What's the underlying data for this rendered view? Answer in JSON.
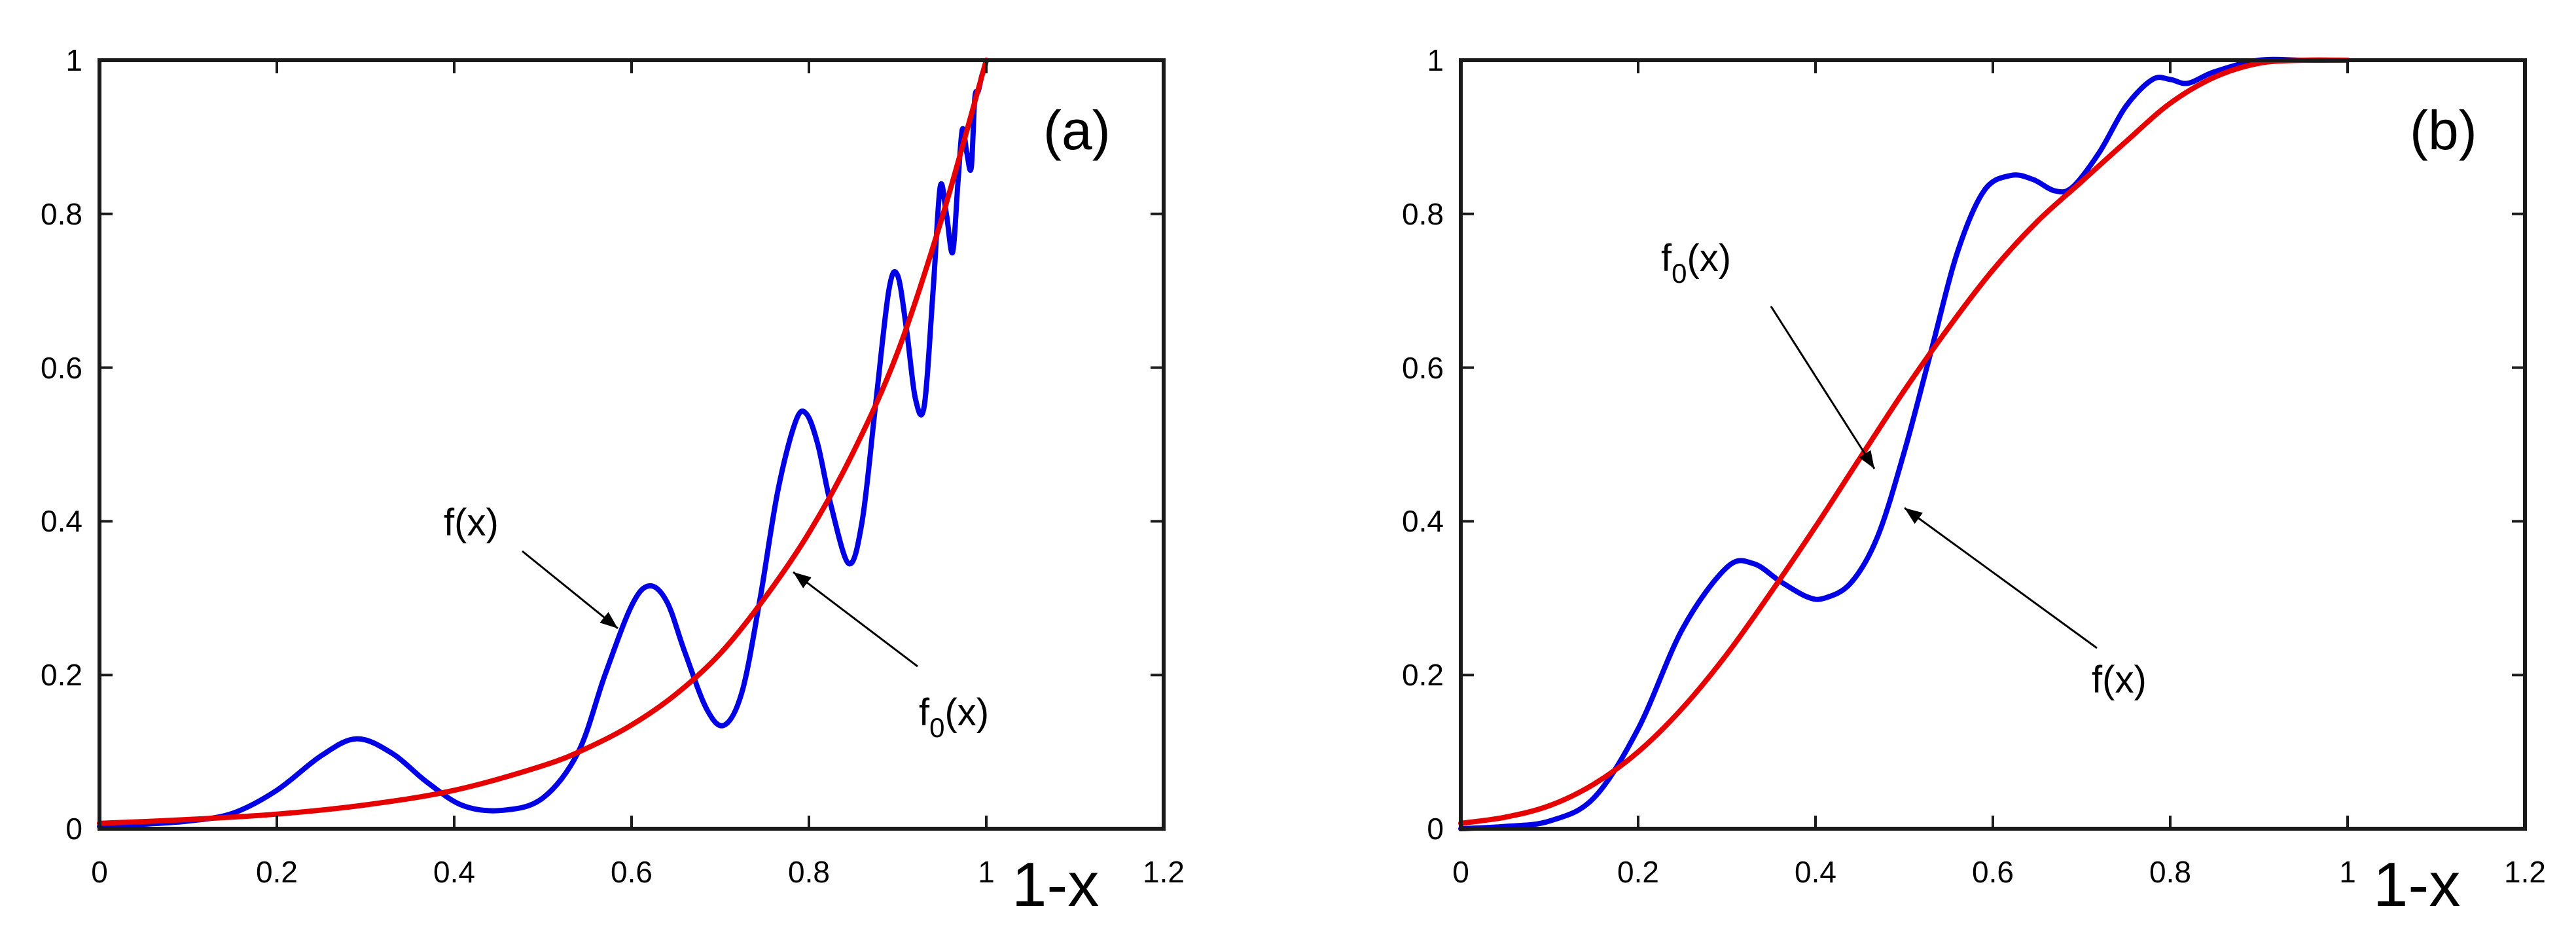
{
  "chart_data": [
    {
      "type": "line",
      "panel_label": "(a)",
      "xlabel": "1-x",
      "ylabel": "",
      "xlim": [
        0,
        1.2
      ],
      "ylim": [
        0,
        1
      ],
      "xticks": [
        "0",
        "0.2",
        "0.4",
        "0.6",
        "0.8",
        "1",
        "1.2"
      ],
      "yticks": [
        "0",
        "0.2",
        "0.4",
        "0.6",
        "0.8",
        "1"
      ],
      "grid": false,
      "series": [
        {
          "name": "f(x)",
          "color": "#0000e6",
          "x": [
            0,
            0.05,
            0.1,
            0.15,
            0.2,
            0.25,
            0.29,
            0.33,
            0.37,
            0.41,
            0.455,
            0.5,
            0.54,
            0.57,
            0.6,
            0.62,
            0.64,
            0.66,
            0.685,
            0.705,
            0.725,
            0.745,
            0.765,
            0.785,
            0.797,
            0.81,
            0.825,
            0.845,
            0.86,
            0.875,
            0.89,
            0.9,
            0.91,
            0.92,
            0.93,
            0.94,
            0.948,
            0.955,
            0.962,
            0.968,
            0.973,
            0.978,
            0.983,
            0.987,
            0.991,
            0.995,
            0.998,
            1.0
          ],
          "y": [
            0.003,
            0.006,
            0.01,
            0.02,
            0.05,
            0.095,
            0.117,
            0.098,
            0.06,
            0.03,
            0.024,
            0.04,
            0.1,
            0.2,
            0.29,
            0.316,
            0.295,
            0.23,
            0.155,
            0.135,
            0.18,
            0.3,
            0.44,
            0.53,
            0.54,
            0.5,
            0.42,
            0.345,
            0.4,
            0.55,
            0.7,
            0.72,
            0.65,
            0.56,
            0.55,
            0.7,
            0.835,
            0.8,
            0.75,
            0.84,
            0.91,
            0.88,
            0.86,
            0.95,
            0.96,
            0.98,
            0.99,
            1.0
          ]
        },
        {
          "name": "f_0(x)",
          "color": "#e60000",
          "x": [
            0,
            0.1,
            0.2,
            0.3,
            0.4,
            0.5,
            0.55,
            0.6,
            0.65,
            0.7,
            0.75,
            0.8,
            0.85,
            0.9,
            0.95,
            1.0
          ],
          "y": [
            0.007,
            0.012,
            0.019,
            0.031,
            0.05,
            0.082,
            0.105,
            0.135,
            0.175,
            0.228,
            0.3,
            0.385,
            0.49,
            0.62,
            0.795,
            1.0
          ]
        }
      ],
      "annotations": [
        {
          "label": "f(x)",
          "base": "f",
          "sub": "",
          "arg": "(x)",
          "target_series": "f(x)"
        },
        {
          "label": "f0(x)",
          "base": "f",
          "sub": "0",
          "arg": "(x)",
          "target_series": "f_0(x)"
        }
      ]
    },
    {
      "type": "line",
      "panel_label": "(b)",
      "xlabel": "1-x",
      "ylabel": "",
      "xlim": [
        0,
        1.2
      ],
      "ylim": [
        0,
        1
      ],
      "xticks": [
        "0",
        "0.2",
        "0.4",
        "0.6",
        "0.8",
        "1",
        "1.2"
      ],
      "yticks": [
        "0",
        "0.2",
        "0.4",
        "0.6",
        "0.8",
        "1"
      ],
      "grid": false,
      "series": [
        {
          "name": "f(x)",
          "color": "#0000e6",
          "x": [
            0,
            0.05,
            0.1,
            0.15,
            0.2,
            0.25,
            0.3,
            0.33,
            0.36,
            0.39,
            0.41,
            0.44,
            0.47,
            0.5,
            0.53,
            0.56,
            0.59,
            0.62,
            0.645,
            0.67,
            0.69,
            0.72,
            0.75,
            0.78,
            0.8,
            0.82,
            0.85,
            0.9,
            0.95,
            1.0
          ],
          "y": [
            0.0,
            0.003,
            0.01,
            0.04,
            0.13,
            0.26,
            0.34,
            0.345,
            0.322,
            0.302,
            0.3,
            0.32,
            0.38,
            0.49,
            0.62,
            0.75,
            0.83,
            0.85,
            0.845,
            0.83,
            0.835,
            0.88,
            0.94,
            0.975,
            0.975,
            0.97,
            0.985,
            1.0,
            1.0,
            1.0
          ]
        },
        {
          "name": "f_0(x)",
          "color": "#e60000",
          "x": [
            0,
            0.05,
            0.1,
            0.15,
            0.2,
            0.25,
            0.3,
            0.35,
            0.4,
            0.45,
            0.5,
            0.55,
            0.6,
            0.65,
            0.7,
            0.75,
            0.8,
            0.85,
            0.9,
            0.95,
            1.0
          ],
          "y": [
            0.007,
            0.015,
            0.03,
            0.058,
            0.1,
            0.157,
            0.227,
            0.308,
            0.393,
            0.482,
            0.57,
            0.652,
            0.727,
            0.79,
            0.842,
            0.894,
            0.944,
            0.978,
            0.996,
            1.0,
            1.0
          ]
        }
      ],
      "annotations": [
        {
          "label": "f0(x)",
          "base": "f",
          "sub": "0",
          "arg": "(x)",
          "target_series": "f_0(x)"
        },
        {
          "label": "f(x)",
          "base": "f",
          "sub": "",
          "arg": "(x)",
          "target_series": "f(x)"
        }
      ]
    }
  ]
}
